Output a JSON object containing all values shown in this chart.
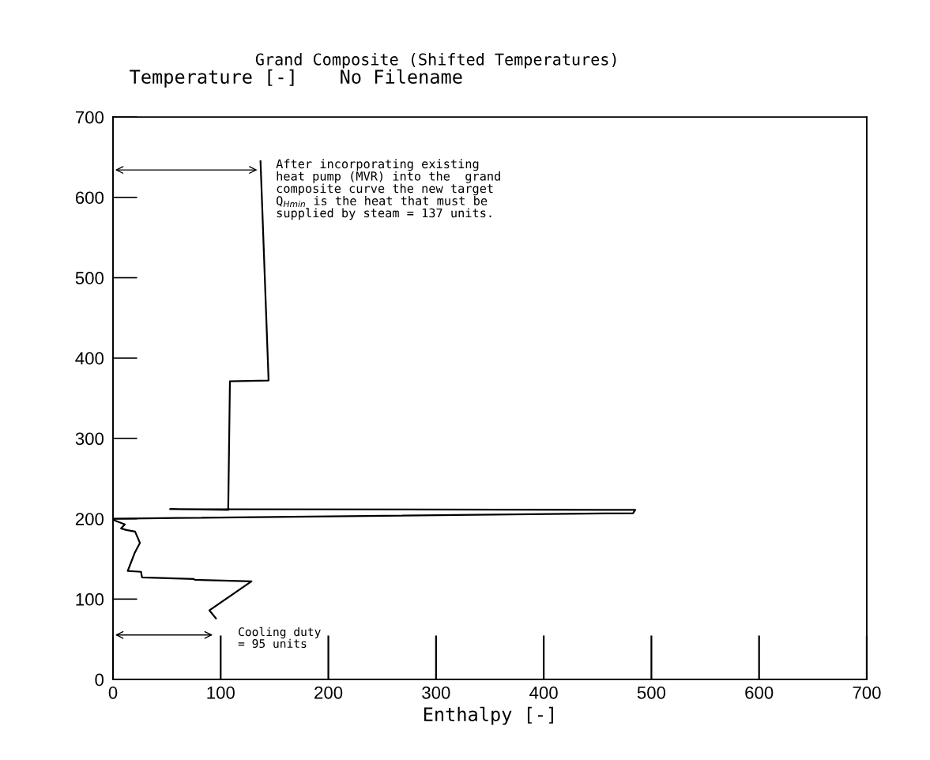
{
  "chart_data": {
    "type": "line",
    "title": "Grand Composite (Shifted Temperatures)",
    "subtitle": "No Filename",
    "xlabel": "Enthalpy [-]",
    "ylabel": "Temperature [-]",
    "x": [
      95.6,
      89.5,
      128.6,
      76,
      75,
      27,
      26,
      13.7,
      20,
      25,
      20.5,
      12.5,
      7.5,
      11,
      1.5,
      0,
      59,
      483,
      485,
      53,
      107,
      107,
      108.6,
      144.5,
      137
    ],
    "series": [
      {
        "color": "#000000",
        "values": [
          76,
          86,
          122,
          124,
          125,
          127,
          134,
          135,
          157,
          170,
          184,
          186,
          188,
          193,
          198,
          200,
          201,
          207,
          211,
          212,
          211,
          211,
          371,
          372,
          645
        ]
      }
    ],
    "xlim": [
      0,
      700
    ],
    "ylim": [
      0,
      700
    ],
    "xticks": [
      0,
      100,
      200,
      300,
      400,
      500,
      600,
      700
    ],
    "yticks": [
      0,
      100,
      200,
      300,
      400,
      500,
      600,
      700
    ],
    "grid": false,
    "legend": false,
    "marker": "none",
    "line_style": "solid",
    "annotations": [
      {
        "text": "After incorporating existing\nheat pump (MVR) into the  grand\ncomposite curve the new target\nQ$_{Hmin}$ is the heat that must be\nsupplied by steam = 137 units.",
        "x": 137,
        "y": 645
      },
      {
        "text": "Cooling duty\n= 95 units",
        "x": 95.6,
        "y": 76
      }
    ]
  }
}
